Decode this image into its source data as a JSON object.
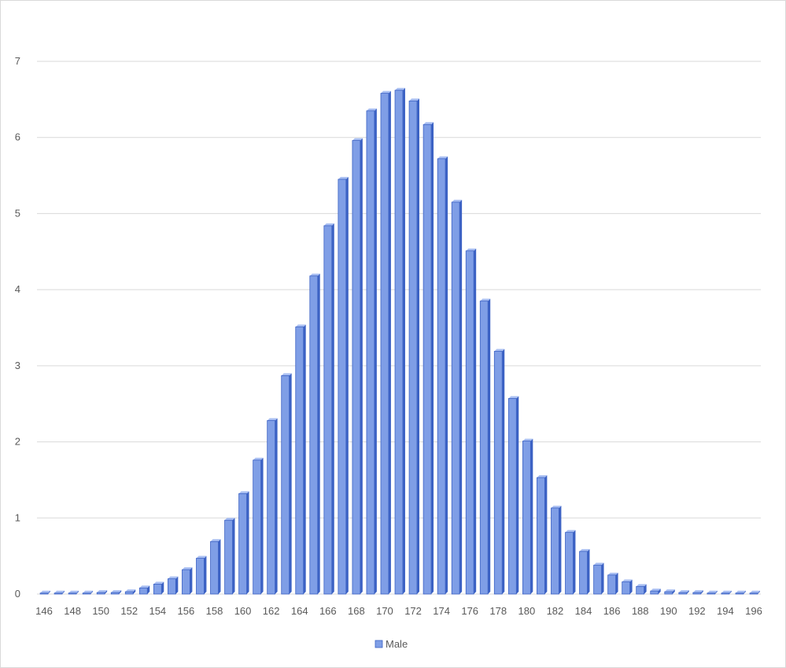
{
  "chart_data": {
    "type": "bar",
    "series": [
      {
        "name": "Male",
        "color": "#7f9ee6",
        "values": [
          0.01,
          0.01,
          0.01,
          0.01,
          0.02,
          0.02,
          0.03,
          0.08,
          0.13,
          0.2,
          0.32,
          0.47,
          0.69,
          0.97,
          1.32,
          1.76,
          2.28,
          2.87,
          3.51,
          4.18,
          4.84,
          5.45,
          5.96,
          6.35,
          6.58,
          6.62,
          6.48,
          6.17,
          5.72,
          5.15,
          4.51,
          3.85,
          3.19,
          2.57,
          2.01,
          1.53,
          1.13,
          0.81,
          0.56,
          0.38,
          0.25,
          0.16,
          0.1,
          0.04,
          0.03,
          0.02,
          0.02,
          0.01,
          0.01,
          0.01,
          0.01
        ]
      }
    ],
    "categories": [
      "146",
      "147",
      "148",
      "149",
      "150",
      "151",
      "152",
      "153",
      "154",
      "155",
      "156",
      "157",
      "158",
      "159",
      "160",
      "161",
      "162",
      "163",
      "164",
      "165",
      "166",
      "167",
      "168",
      "169",
      "170",
      "171",
      "172",
      "173",
      "174",
      "175",
      "176",
      "177",
      "178",
      "179",
      "180",
      "181",
      "182",
      "183",
      "184",
      "185",
      "186",
      "187",
      "188",
      "189",
      "190",
      "191",
      "192",
      "193",
      "194",
      "195",
      "196"
    ],
    "x_tick_labels": [
      "146",
      "148",
      "150",
      "152",
      "154",
      "156",
      "158",
      "160",
      "162",
      "164",
      "166",
      "168",
      "170",
      "172",
      "174",
      "176",
      "178",
      "180",
      "182",
      "184",
      "186",
      "188",
      "190",
      "192",
      "194",
      "196"
    ],
    "y_tick_labels": [
      "0",
      "1",
      "2",
      "3",
      "4",
      "5",
      "6",
      "7"
    ],
    "ylim": [
      0,
      7
    ],
    "grid": true,
    "legend": "bottom",
    "title": "",
    "xlabel": "",
    "ylabel": ""
  }
}
